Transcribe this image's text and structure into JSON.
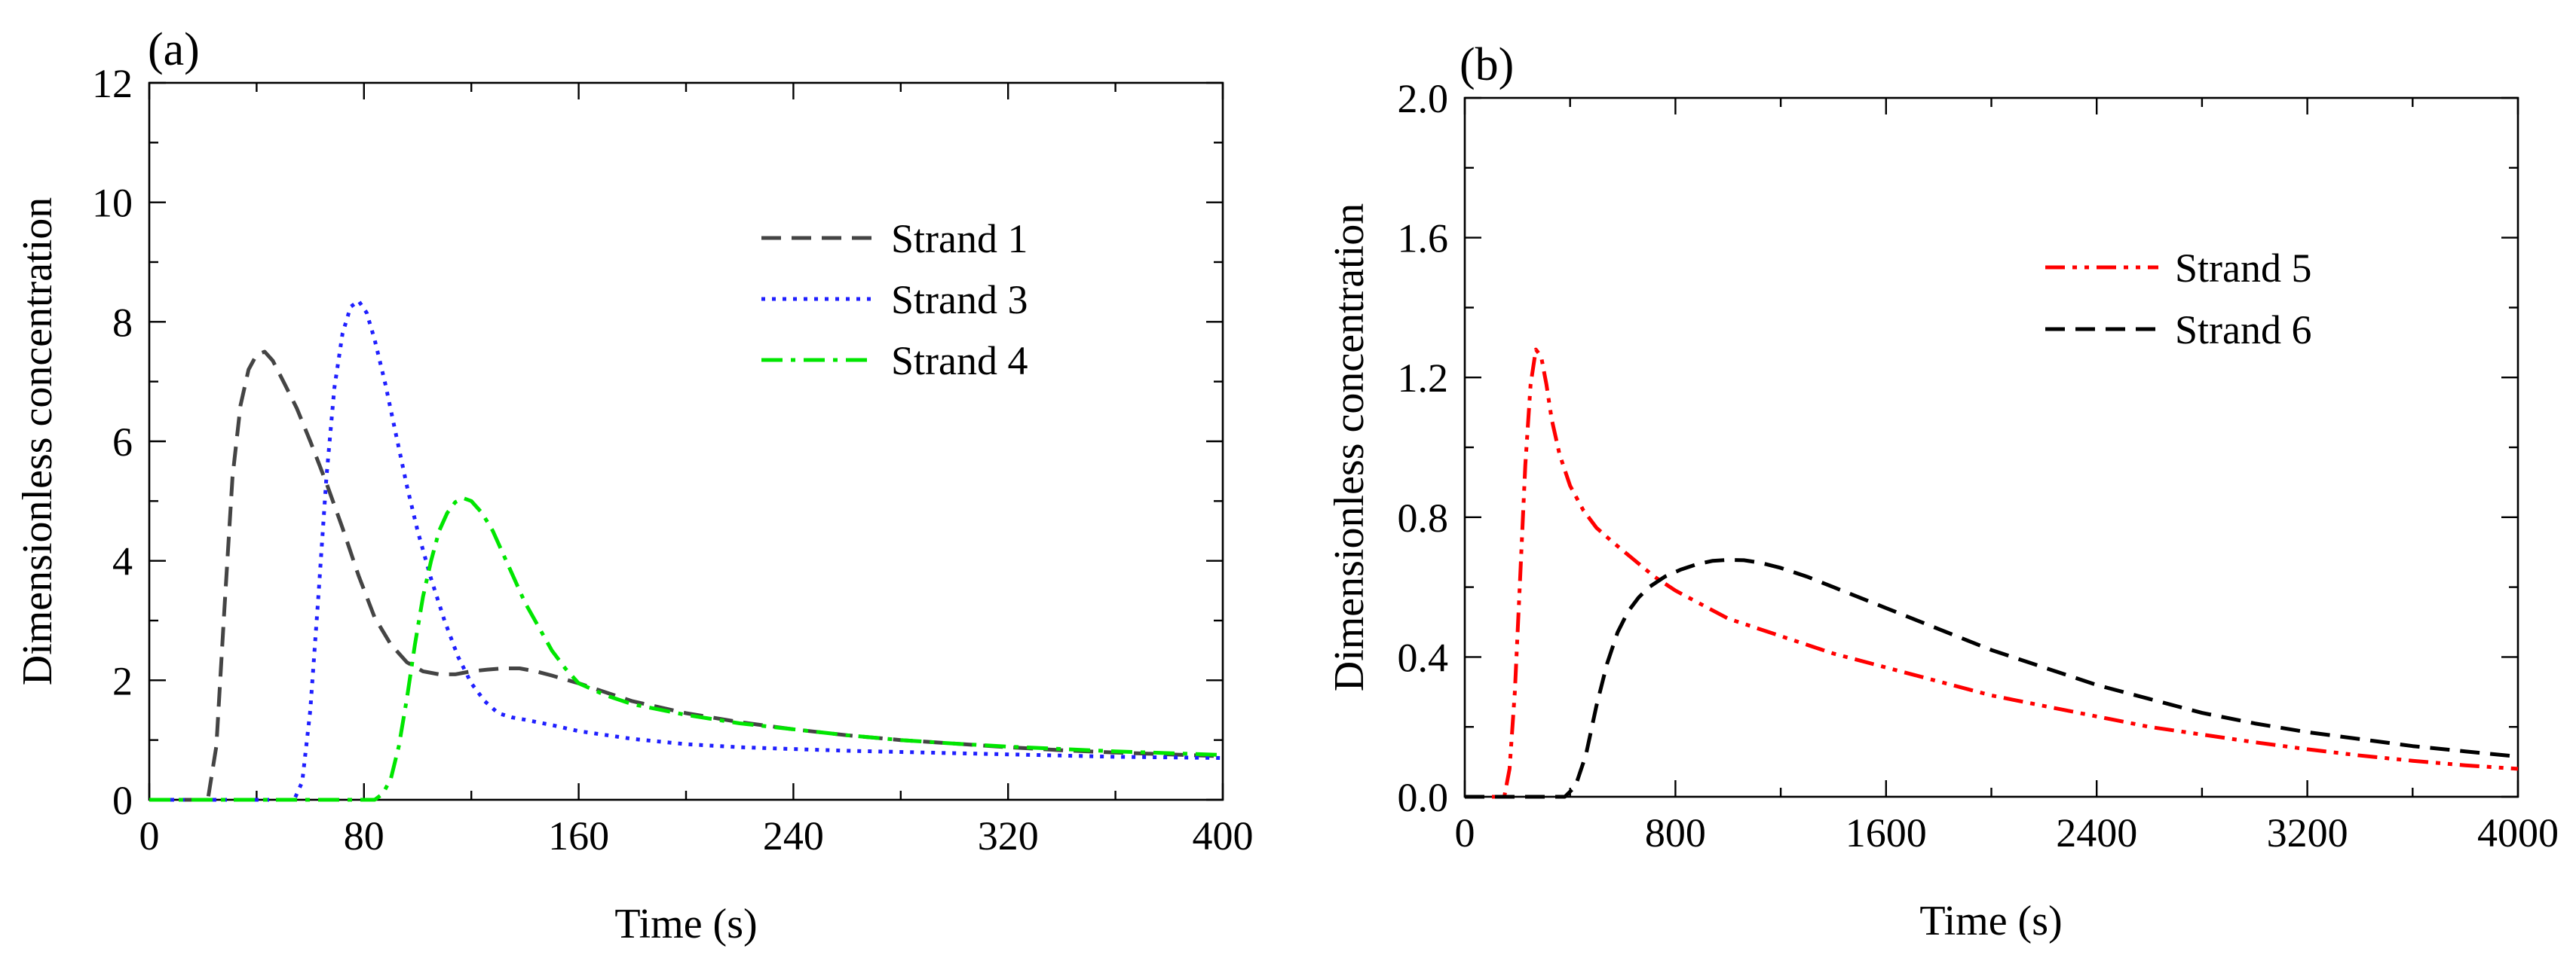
{
  "chart_data": [
    {
      "panel_label": "(a)",
      "type": "line",
      "title": "",
      "xlabel": "Time (s)",
      "ylabel": "Dimensionless concentration",
      "xlim": [
        0,
        400
      ],
      "ylim": [
        0,
        12
      ],
      "xticks": [
        0,
        80,
        160,
        240,
        320,
        400
      ],
      "yticks": [
        0,
        2,
        4,
        6,
        8,
        10,
        12
      ],
      "xtick_labels": [
        "0",
        "80",
        "160",
        "240",
        "320",
        "400"
      ],
      "ytick_labels": [
        "0",
        "2",
        "4",
        "6",
        "8",
        "10",
        "12"
      ],
      "legend_position": "top-right",
      "series": [
        {
          "name": "Strand 1",
          "color": "#444444",
          "dash": "dashed",
          "x": [
            0,
            20,
            22,
            25,
            28,
            31,
            34,
            37,
            40,
            43,
            46,
            50,
            55,
            60,
            66,
            72,
            78,
            84,
            90,
            96,
            102,
            108,
            114,
            120,
            126,
            132,
            138,
            144,
            150,
            160,
            170,
            180,
            200,
            220,
            240,
            260,
            280,
            300,
            320,
            340,
            360,
            380,
            400
          ],
          "y": [
            0,
            0,
            0.05,
            0.9,
            3.2,
            5.4,
            6.6,
            7.2,
            7.45,
            7.5,
            7.35,
            7.0,
            6.55,
            6.0,
            5.3,
            4.55,
            3.75,
            3.05,
            2.6,
            2.3,
            2.15,
            2.1,
            2.1,
            2.15,
            2.18,
            2.2,
            2.2,
            2.15,
            2.08,
            1.95,
            1.8,
            1.65,
            1.45,
            1.3,
            1.18,
            1.08,
            1.0,
            0.94,
            0.88,
            0.83,
            0.79,
            0.76,
            0.73
          ]
        },
        {
          "name": "Strand 3",
          "color": "#1f1fff",
          "dash": "dotted",
          "x": [
            0,
            54,
            57,
            60,
            63,
            66,
            69,
            72,
            75,
            78,
            81,
            84,
            88,
            92,
            96,
            100,
            105,
            110,
            115,
            120,
            125,
            130,
            135,
            140,
            150,
            160,
            180,
            200,
            220,
            240,
            260,
            280,
            300,
            320,
            340,
            360,
            380,
            400
          ],
          "y": [
            0,
            0,
            0.3,
            1.5,
            3.4,
            5.4,
            6.9,
            7.8,
            8.25,
            8.35,
            8.15,
            7.7,
            6.95,
            6.1,
            5.25,
            4.5,
            3.7,
            3.0,
            2.4,
            1.95,
            1.65,
            1.45,
            1.38,
            1.34,
            1.25,
            1.15,
            1.02,
            0.93,
            0.88,
            0.85,
            0.82,
            0.8,
            0.78,
            0.76,
            0.74,
            0.72,
            0.71,
            0.7
          ]
        },
        {
          "name": "Strand 4",
          "color": "#00e600",
          "dash": "dash-dot",
          "x": [
            0,
            84,
            87,
            90,
            93,
            96,
            99,
            102,
            105,
            108,
            111,
            114,
            117,
            120,
            124,
            128,
            132,
            136,
            140,
            145,
            150,
            155,
            160,
            170,
            180,
            200,
            220,
            240,
            260,
            280,
            300,
            320,
            340,
            360,
            380,
            400
          ],
          "y": [
            0,
            0,
            0.1,
            0.35,
            0.9,
            1.7,
            2.6,
            3.4,
            4.0,
            4.5,
            4.8,
            4.98,
            5.05,
            5.0,
            4.8,
            4.5,
            4.1,
            3.7,
            3.3,
            2.9,
            2.5,
            2.2,
            1.95,
            1.75,
            1.6,
            1.42,
            1.28,
            1.18,
            1.08,
            1.0,
            0.94,
            0.89,
            0.85,
            0.81,
            0.78,
            0.75
          ]
        }
      ]
    },
    {
      "panel_label": "(b)",
      "type": "line",
      "title": "",
      "xlabel": "Time (s)",
      "ylabel": "Dimensionless concentration",
      "xlim": [
        0,
        4000
      ],
      "ylim": [
        0,
        2.0
      ],
      "xticks": [
        0,
        800,
        1600,
        2400,
        3200,
        4000
      ],
      "yticks": [
        0,
        0.4,
        0.8,
        1.2,
        1.6,
        2.0
      ],
      "xtick_labels": [
        "0",
        "800",
        "1600",
        "2400",
        "3200",
        "4000"
      ],
      "ytick_labels": [
        "0.0",
        "0.4",
        "0.8",
        "1.2",
        "1.6",
        "2.0"
      ],
      "legend_position": "top-right",
      "series": [
        {
          "name": "Strand 5",
          "color": "#ff0000",
          "dash": "dash-dot-dot",
          "x": [
            0,
            150,
            170,
            190,
            210,
            230,
            250,
            270,
            290,
            310,
            330,
            360,
            400,
            450,
            500,
            560,
            640,
            720,
            800,
            900,
            1000,
            1200,
            1400,
            1600,
            1800,
            2000,
            2200,
            2400,
            2600,
            2800,
            3000,
            3200,
            3400,
            3600,
            3800,
            4000
          ],
          "y": [
            0,
            0,
            0.08,
            0.3,
            0.62,
            0.95,
            1.18,
            1.28,
            1.26,
            1.18,
            1.08,
            0.98,
            0.89,
            0.82,
            0.77,
            0.73,
            0.68,
            0.63,
            0.59,
            0.55,
            0.51,
            0.46,
            0.41,
            0.37,
            0.33,
            0.29,
            0.26,
            0.23,
            0.2,
            0.178,
            0.156,
            0.136,
            0.118,
            0.103,
            0.09,
            0.08
          ]
        },
        {
          "name": "Strand 6",
          "color": "#000000",
          "dash": "dashed",
          "x": [
            0,
            380,
            420,
            460,
            500,
            540,
            580,
            620,
            660,
            700,
            760,
            820,
            880,
            940,
            1000,
            1060,
            1120,
            1200,
            1300,
            1400,
            1600,
            1800,
            2000,
            2200,
            2400,
            2600,
            2800,
            3000,
            3200,
            3400,
            3600,
            3800,
            4000
          ],
          "y": [
            0,
            0,
            0.03,
            0.12,
            0.26,
            0.38,
            0.47,
            0.53,
            0.57,
            0.6,
            0.63,
            0.65,
            0.665,
            0.675,
            0.678,
            0.677,
            0.67,
            0.655,
            0.63,
            0.6,
            0.54,
            0.48,
            0.42,
            0.37,
            0.32,
            0.28,
            0.24,
            0.21,
            0.185,
            0.165,
            0.145,
            0.13,
            0.115
          ]
        }
      ]
    }
  ]
}
